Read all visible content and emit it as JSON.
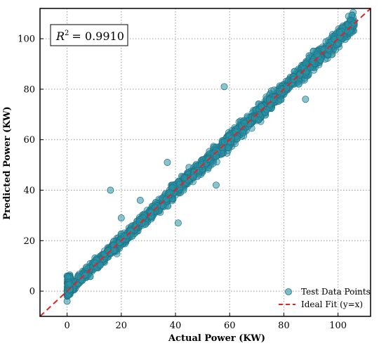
{
  "chart_data": {
    "type": "scatter",
    "xlabel": "Actual Power (KW)",
    "ylabel": "Predicted Power (KW)",
    "xlim": [
      -10,
      112
    ],
    "ylim": [
      -10,
      112
    ],
    "xticks": [
      0,
      20,
      40,
      60,
      80,
      100
    ],
    "yticks": [
      0,
      20,
      40,
      60,
      80,
      100
    ],
    "grid": true,
    "grid_style": "dotted",
    "legend_position": "bottom-right",
    "annotation": {
      "prefix": "R",
      "superscript": "2",
      "value": "= 0.9910"
    },
    "colors": {
      "points": "#2a93a8",
      "points_edge": "#1d6f80",
      "fit_line": "#e8201e"
    },
    "series": [
      {
        "name": "Test Data Points",
        "kind": "scatter",
        "points_note": "dense cloud of ~2500 points tightly following y = x from 0 to ~106 KW",
        "x": [
          0,
          0.5,
          1,
          2,
          3,
          5,
          8,
          10,
          12,
          15,
          18,
          20,
          22,
          25,
          28,
          30,
          32,
          35,
          38,
          40,
          42,
          45,
          48,
          50,
          52,
          55,
          58,
          60,
          62,
          65,
          68,
          70,
          72,
          75,
          78,
          80,
          82,
          85,
          88,
          90,
          92,
          95,
          98,
          100,
          102,
          104,
          105,
          16,
          20,
          41,
          45,
          58,
          88,
          0,
          0,
          55,
          37,
          27
        ],
        "y": [
          -4,
          2,
          4,
          3,
          1,
          6,
          7,
          11,
          13,
          14,
          19,
          21,
          21,
          26,
          28,
          29,
          33,
          34,
          39,
          40,
          43,
          45,
          47,
          51,
          52,
          54,
          59,
          60,
          63,
          64,
          68,
          70,
          73,
          74,
          79,
          80,
          82,
          86,
          87,
          90,
          93,
          94,
          99,
          100,
          103,
          104,
          106,
          40,
          29,
          27,
          49,
          81,
          76,
          -2,
          6,
          42,
          51,
          36
        ]
      },
      {
        "name": "Ideal Fit (y=x)",
        "kind": "line",
        "style": "dashed",
        "x": [
          -10,
          112
        ],
        "y": [
          -10,
          112
        ]
      }
    ]
  }
}
